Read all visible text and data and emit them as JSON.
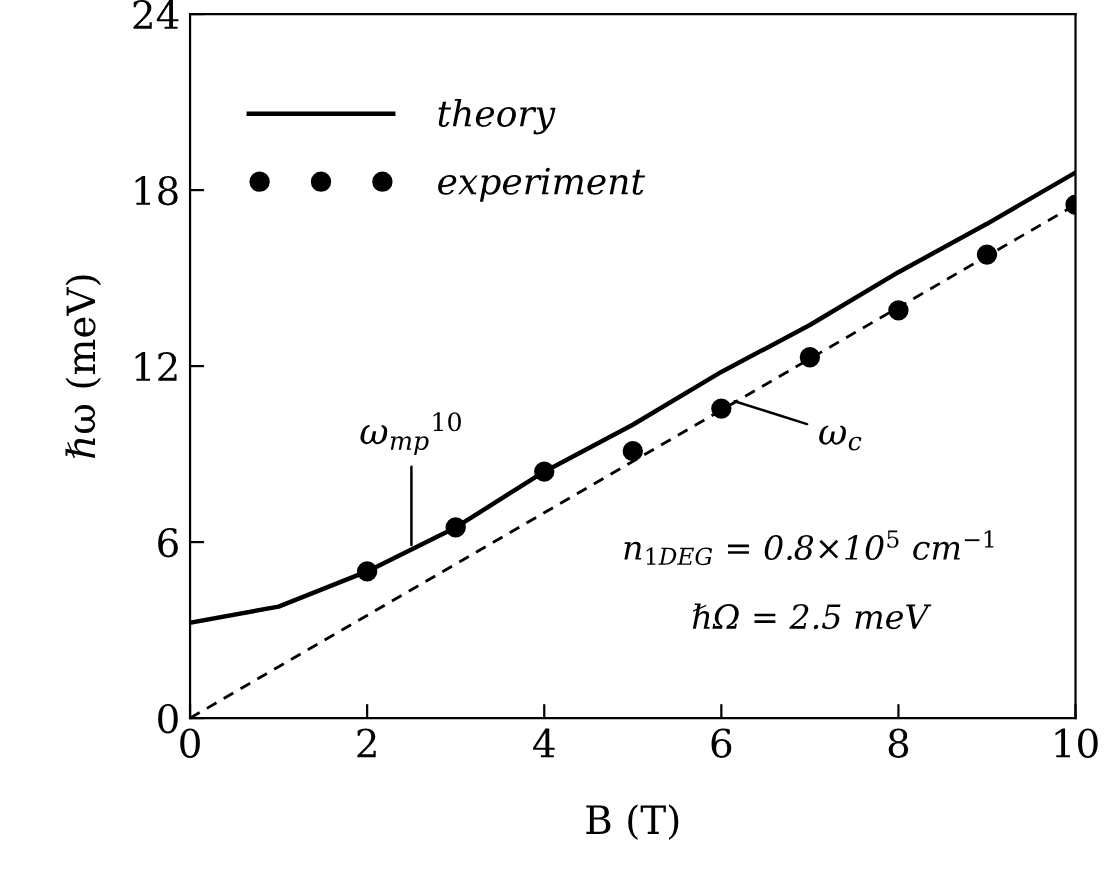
{
  "chart_data": {
    "type": "line",
    "xlabel": "B (T)",
    "ylabel": "ℏω (meV)",
    "xlim": [
      0,
      10
    ],
    "ylim": [
      0,
      24
    ],
    "xticks": [
      0,
      2,
      4,
      6,
      8,
      10
    ],
    "yticks": [
      0,
      6,
      12,
      18,
      24
    ],
    "grid": false,
    "legend": "top left",
    "series": [
      {
        "name": "theory",
        "color": "#000000",
        "line_style": "solid",
        "marker": "none",
        "x": [
          0,
          1,
          2,
          3,
          4,
          5,
          6,
          7,
          8,
          9,
          10
        ],
        "values": [
          3.25,
          3.8,
          5.0,
          6.5,
          8.4,
          10.0,
          11.8,
          13.4,
          15.2,
          16.85,
          18.6
        ]
      },
      {
        "name": "experiment",
        "type": "scatter",
        "color": "#000000",
        "marker": "circle",
        "x": [
          2,
          3,
          4,
          5,
          6,
          7,
          8,
          9,
          10
        ],
        "values": [
          5.0,
          6.5,
          8.4,
          9.1,
          10.55,
          12.3,
          13.9,
          15.8,
          17.5
        ]
      },
      {
        "color": "#000000",
        "line_style": "dashed",
        "marker": "none",
        "x": [
          0,
          10
        ],
        "values": [
          0,
          17.5
        ]
      }
    ],
    "annotations": [
      {
        "text": "ω$_{mp}$$^{10}$",
        "x": 2.5,
        "y": 5.9
      },
      {
        "text": "ω$_{c}$",
        "x": 6.15,
        "y": 10.8
      },
      "n$_{1DEG}$ = 0.8×10$^{5}$ cm$^{−1}$",
      "ℏΩ = 2.5 meV"
    ]
  }
}
